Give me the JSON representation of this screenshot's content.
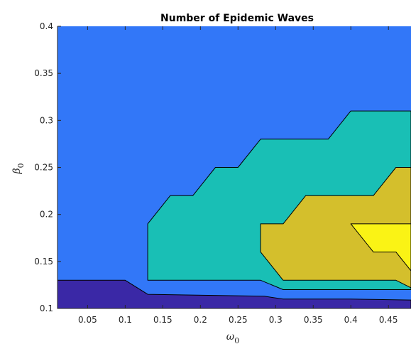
{
  "chart_data": {
    "type": "contour",
    "title": "Number of Epidemic Waves",
    "xlabel": "ω",
    "xlabel_sub": "0",
    "ylabel": "β",
    "ylabel_sub": "0",
    "xlim": [
      0.01,
      0.48
    ],
    "ylim": [
      0.1,
      0.4
    ],
    "xticks": [
      0.05,
      0.1,
      0.15,
      0.2,
      0.25,
      0.3,
      0.35,
      0.4,
      0.45
    ],
    "xtick_labels": [
      "0.05",
      "0.1",
      "0.15",
      "0.2",
      "0.25",
      "0.3",
      "0.35",
      "0.4",
      "0.45"
    ],
    "yticks": [
      0.1,
      0.15,
      0.2,
      0.25,
      0.3,
      0.35,
      0.4
    ],
    "ytick_labels": [
      "0.1",
      "0.15",
      "0.2",
      "0.25",
      "0.3",
      "0.35",
      "0.4"
    ],
    "background_color": "#3277f8",
    "regions": [
      {
        "level": 0,
        "color": "#3a28a6",
        "points": [
          [
            0.01,
            0.1
          ],
          [
            0.48,
            0.1
          ],
          [
            0.48,
            0.109
          ],
          [
            0.4,
            0.11
          ],
          [
            0.31,
            0.11
          ],
          [
            0.285,
            0.113
          ],
          [
            0.13,
            0.115
          ],
          [
            0.1,
            0.13
          ],
          [
            0.01,
            0.13
          ]
        ]
      },
      {
        "level": 2,
        "color": "#19bfb5",
        "points": [
          [
            0.13,
            0.13
          ],
          [
            0.13,
            0.19
          ],
          [
            0.16,
            0.22
          ],
          [
            0.19,
            0.22
          ],
          [
            0.22,
            0.25
          ],
          [
            0.25,
            0.25
          ],
          [
            0.28,
            0.28
          ],
          [
            0.37,
            0.28
          ],
          [
            0.4,
            0.31
          ],
          [
            0.48,
            0.31
          ],
          [
            0.48,
            0.12
          ],
          [
            0.45,
            0.12
          ],
          [
            0.31,
            0.12
          ],
          [
            0.28,
            0.13
          ]
        ]
      },
      {
        "level": 3,
        "color": "#d4bf2c",
        "points": [
          [
            0.28,
            0.19
          ],
          [
            0.31,
            0.19
          ],
          [
            0.34,
            0.22
          ],
          [
            0.43,
            0.22
          ],
          [
            0.46,
            0.25
          ],
          [
            0.48,
            0.25
          ],
          [
            0.48,
            0.122
          ],
          [
            0.46,
            0.13
          ],
          [
            0.31,
            0.13
          ],
          [
            0.28,
            0.16
          ]
        ]
      },
      {
        "level": 4,
        "color": "#faf315",
        "points": [
          [
            0.4,
            0.19
          ],
          [
            0.48,
            0.19
          ],
          [
            0.48,
            0.14
          ],
          [
            0.46,
            0.16
          ],
          [
            0.43,
            0.16
          ]
        ]
      }
    ]
  }
}
